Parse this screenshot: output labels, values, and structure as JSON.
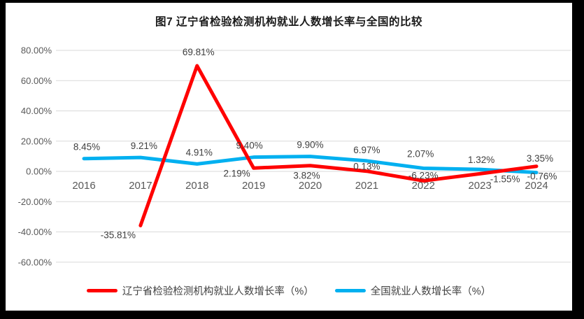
{
  "title": "图7 辽宁省检验检测机构就业人数增长率与全国的比较",
  "chart_data": {
    "type": "line",
    "title": "图7 辽宁省检验检测机构就业人数增长率与全国的比较",
    "categories": [
      "2016",
      "2017",
      "2018",
      "2019",
      "2020",
      "2021",
      "2022",
      "2023",
      "2024"
    ],
    "xlabel": "",
    "ylabel": "",
    "ylim": [
      -60,
      80
    ],
    "grid": true,
    "legend_position": "bottom",
    "y_axis": {
      "ticks": [
        {
          "v": 80,
          "label": "80.00%"
        },
        {
          "v": 60,
          "label": "60.00%"
        },
        {
          "v": 40,
          "label": "40.00%"
        },
        {
          "v": 20,
          "label": "20.00%"
        },
        {
          "v": 0,
          "label": "0.00%"
        },
        {
          "v": -20,
          "label": "-20.00%"
        },
        {
          "v": -40,
          "label": "-40.00%"
        },
        {
          "v": -60,
          "label": "-60.00%"
        }
      ]
    },
    "series": [
      {
        "name": "辽宁省检验检测机构就业人数增长率（%）",
        "color": "#FF0000",
        "points": [
          {
            "x": "2017",
            "y": -35.81,
            "label": "-35.81%",
            "offset": [
              -32,
              18
            ]
          },
          {
            "x": "2018",
            "y": 69.81,
            "label": "69.81%",
            "offset": [
              2,
              -15
            ]
          },
          {
            "x": "2019",
            "y": 2.19,
            "label": "2.19%",
            "offset": [
              -24,
              12
            ]
          },
          {
            "x": "2020",
            "y": 3.82,
            "label": "3.82%",
            "offset": [
              -5,
              19
            ]
          },
          {
            "x": "2021",
            "y": 0.13,
            "label": "0.13%",
            "offset": [
              0,
              -2
            ]
          },
          {
            "x": "2022",
            "y": -6.23,
            "label": "-6.23%",
            "offset": [
              0,
              -3
            ]
          },
          {
            "x": "2023",
            "y": -1.55,
            "label": "-1.55%",
            "offset": [
              36,
              12
            ]
          },
          {
            "x": "2024",
            "y": 3.35,
            "label": "3.35%",
            "offset": [
              5,
              -7
            ]
          }
        ]
      },
      {
        "name": "全国就业人数增长率（%）",
        "color": "#00B0F0",
        "points": [
          {
            "x": "2016",
            "y": 8.45,
            "label": "8.45%",
            "offset": [
              4,
              -12
            ]
          },
          {
            "x": "2017",
            "y": 9.21,
            "label": "9.21%",
            "offset": [
              5,
              -12
            ]
          },
          {
            "x": "2018",
            "y": 4.91,
            "label": "4.91%",
            "offset": [
              3,
              -12
            ]
          },
          {
            "x": "2019",
            "y": 9.4,
            "label": "9.40%",
            "offset": [
              -6,
              -12
            ]
          },
          {
            "x": "2020",
            "y": 9.9,
            "label": "9.90%",
            "offset": [
              0,
              -12
            ]
          },
          {
            "x": "2021",
            "y": 6.97,
            "label": "6.97%",
            "offset": [
              0,
              -11
            ]
          },
          {
            "x": "2022",
            "y": 2.07,
            "label": "2.07%",
            "offset": [
              -4,
              -16
            ]
          },
          {
            "x": "2023",
            "y": 1.32,
            "label": "1.32%",
            "offset": [
              2,
              -9
            ]
          },
          {
            "x": "2024",
            "y": -0.76,
            "label": "-0.76%",
            "offset": [
              8,
              10
            ]
          }
        ]
      }
    ]
  }
}
